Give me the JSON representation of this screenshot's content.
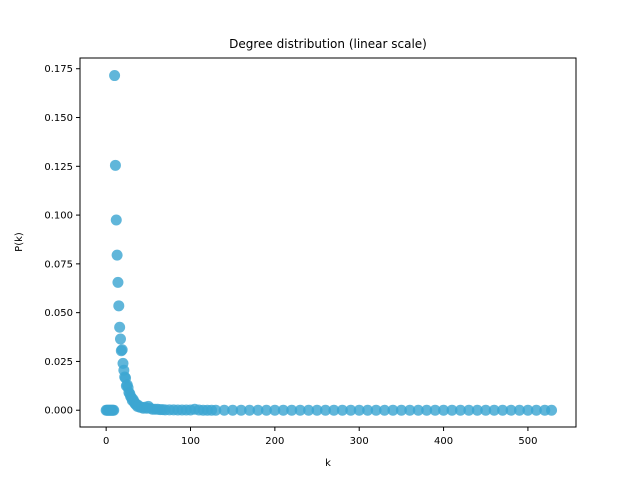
{
  "chart_data": {
    "type": "scatter",
    "title": "Degree distribution (linear scale)",
    "xlabel": "k",
    "ylabel": "P(k)",
    "xlim": [
      -31,
      557
    ],
    "ylim": [
      -0.0086,
      0.1805
    ],
    "x_ticks": [
      0,
      100,
      200,
      300,
      400,
      500
    ],
    "y_ticks": [
      0.0,
      0.025,
      0.05,
      0.075,
      0.1,
      0.125,
      0.15,
      0.175
    ],
    "x_tick_labels": [
      "0",
      "100",
      "200",
      "300",
      "400",
      "500"
    ],
    "y_tick_labels": [
      "0.000",
      "0.025",
      "0.050",
      "0.075",
      "0.100",
      "0.125",
      "0.150",
      "0.175"
    ],
    "grid": false,
    "legend": "none",
    "marker_color": "#3da6d2",
    "series": [
      {
        "x": [
          0,
          1,
          2,
          3,
          4,
          5,
          6,
          7,
          8,
          9,
          10,
          11,
          12,
          13,
          14,
          15,
          16,
          17,
          18,
          19,
          20,
          21,
          22,
          23,
          24,
          25,
          26,
          27,
          28,
          29,
          30,
          31,
          32,
          33,
          34,
          35,
          36,
          37,
          38,
          40,
          42,
          44,
          46,
          48,
          50,
          52,
          55,
          58,
          61,
          64,
          67,
          70,
          75,
          80,
          85,
          90,
          95,
          100,
          105,
          110,
          115,
          120,
          125,
          130,
          140,
          150,
          160,
          170,
          180,
          190,
          200,
          210,
          220,
          230,
          240,
          250,
          260,
          270,
          280,
          290,
          300,
          310,
          320,
          330,
          340,
          350,
          360,
          370,
          380,
          390,
          400,
          410,
          420,
          430,
          440,
          450,
          460,
          470,
          480,
          490,
          500,
          510,
          520,
          528
        ],
        "y": [
          0,
          0,
          0,
          0,
          0,
          0,
          0,
          0,
          0,
          0,
          0.1715,
          0.1255,
          0.0975,
          0.0795,
          0.0655,
          0.0535,
          0.0425,
          0.0365,
          0.0305,
          0.031,
          0.024,
          0.0205,
          0.017,
          0.0165,
          0.0125,
          0.013,
          0.0115,
          0.009,
          0.0085,
          0.007,
          0.0065,
          0.005,
          0.0055,
          0.0045,
          0.0035,
          0.003,
          0.003,
          0.002,
          0.0025,
          0.0015,
          0.0015,
          0.001,
          0.0015,
          0.001,
          0.002,
          0.001,
          0.0005,
          0.0005,
          0.0005,
          0.0003,
          0.0003,
          0.0002,
          0.0002,
          0.0002,
          0.0001,
          0.0001,
          0.0001,
          0.0001,
          0.0005,
          0.0001,
          0,
          0,
          0,
          0,
          0,
          0,
          0,
          0,
          0,
          0,
          0,
          0,
          0,
          0,
          0,
          0,
          0,
          0,
          0,
          0,
          0,
          0,
          0,
          0,
          0,
          0,
          0,
          0,
          0,
          0,
          0,
          0,
          0,
          0,
          0,
          0,
          0,
          0,
          0,
          0,
          0,
          0,
          0,
          0
        ]
      }
    ]
  }
}
